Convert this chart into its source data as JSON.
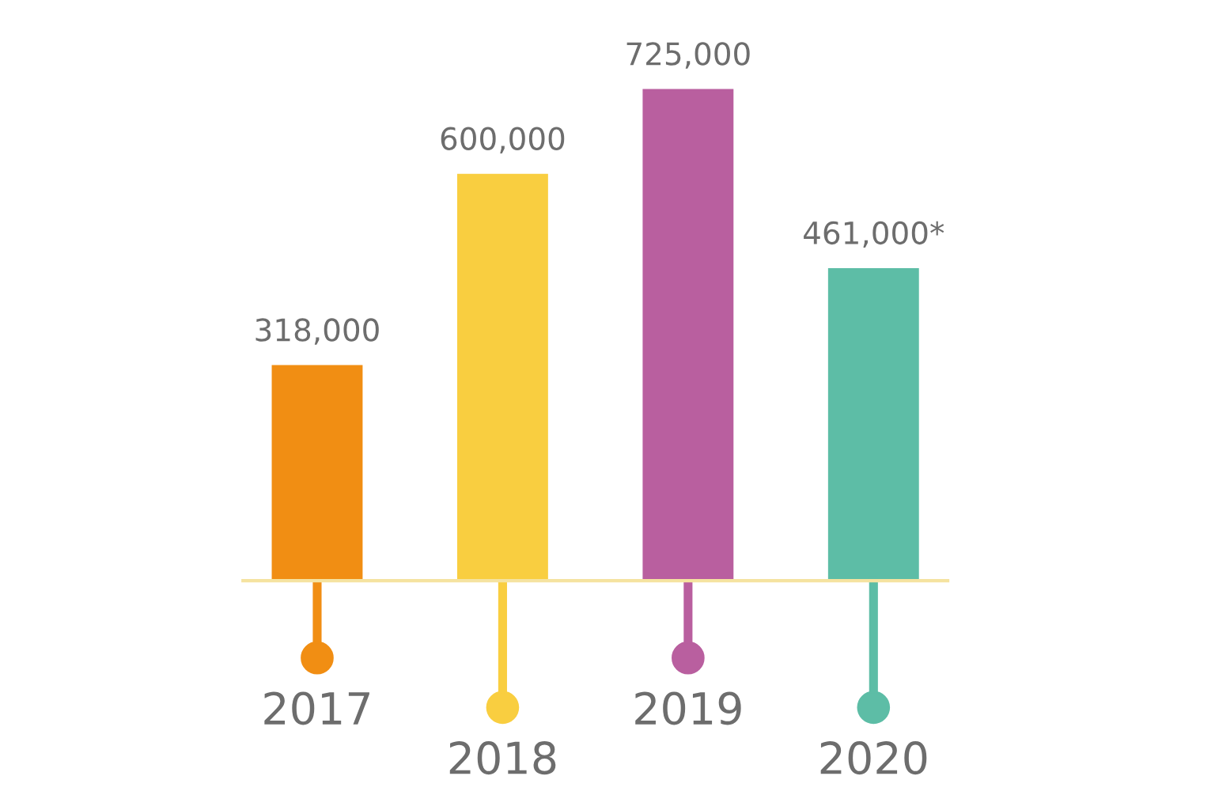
{
  "chart_data": {
    "type": "bar",
    "categories": [
      "2017",
      "2018",
      "2019",
      "2020"
    ],
    "values": [
      318000,
      600000,
      725000,
      461000
    ],
    "colors": [
      "#f18e13",
      "#f9ce40",
      "#b95f9f",
      "#5dbda6"
    ],
    "value_labels": [
      "318,000",
      "600,000",
      "725,000",
      "461,000*"
    ]
  }
}
